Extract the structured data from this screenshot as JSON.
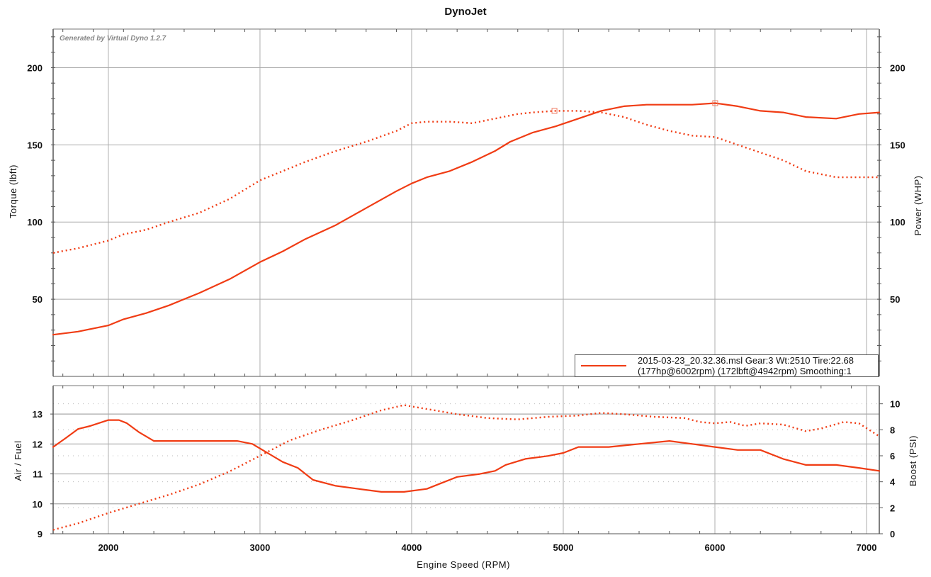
{
  "title": "DynoJet",
  "watermark": "Generated by Virtual Dyno 1.2.7",
  "legend": {
    "line1": "2015-03-23_20.32.36.msl Gear:3 Wt:2510 Tire:22.68",
    "line2": "(177hp@6002rpm) (172lbft@4942rpm) Smoothing:1",
    "color": "#f03c14"
  },
  "chart_data": [
    {
      "type": "line",
      "title": "DynoJet",
      "xlabel": "Engine Speed (RPM)",
      "ylabel": "Torque (lbft)",
      "ylabel_right": "Power (WHP)",
      "xlim": [
        1636,
        7084
      ],
      "ylim": [
        0,
        225
      ],
      "x_ticks": [
        2000,
        3000,
        4000,
        5000,
        6000,
        7000
      ],
      "y_ticks": [
        50,
        100,
        150,
        200
      ],
      "grid": true,
      "legend_position": "lower right",
      "series": [
        {
          "name": "Power (WHP)",
          "style": "solid",
          "color": "#f03c14",
          "x": [
            1636,
            1800,
            2000,
            2100,
            2250,
            2400,
            2600,
            2800,
            3000,
            3150,
            3300,
            3500,
            3700,
            3900,
            4000,
            4100,
            4250,
            4400,
            4550,
            4650,
            4800,
            4950,
            5100,
            5250,
            5400,
            5550,
            5700,
            5850,
            6002,
            6150,
            6300,
            6450,
            6600,
            6800,
            6950,
            7084
          ],
          "y": [
            27,
            29,
            33,
            37,
            41,
            46,
            54,
            63,
            74,
            81,
            89,
            98,
            109,
            120,
            125,
            129,
            133,
            139,
            146,
            152,
            158,
            162,
            167,
            172,
            175,
            176,
            176,
            176,
            177,
            175,
            172,
            171,
            168,
            167,
            170,
            171
          ]
        },
        {
          "name": "Torque (lbft)",
          "style": "dotted",
          "color": "#f03c14",
          "x": [
            1636,
            1800,
            2000,
            2100,
            2250,
            2400,
            2600,
            2800,
            3000,
            3150,
            3300,
            3500,
            3700,
            3900,
            4000,
            4100,
            4250,
            4400,
            4550,
            4700,
            4800,
            4942,
            5100,
            5250,
            5400,
            5550,
            5700,
            5850,
            6002,
            6150,
            6300,
            6450,
            6600,
            6800,
            6950,
            7084
          ],
          "y": [
            80,
            83,
            88,
            92,
            95,
            100,
            106,
            115,
            127,
            133,
            139,
            146,
            152,
            159,
            164,
            165,
            165,
            164,
            167,
            170,
            171,
            172,
            172,
            171,
            168,
            163,
            159,
            156,
            155,
            150,
            145,
            140,
            133,
            129,
            129,
            129
          ]
        }
      ],
      "markers": [
        {
          "series": "Torque (lbft)",
          "rpm": 4942,
          "value": 172,
          "shape": "square"
        },
        {
          "series": "Power (WHP)",
          "rpm": 6002,
          "value": 177,
          "shape": "square"
        }
      ]
    },
    {
      "type": "line",
      "xlabel": "Engine Speed (RPM)",
      "ylabel": "Air / Fuel",
      "ylabel_right": "Boost (PSI)",
      "xlim": [
        1636,
        7084
      ],
      "ylim": [
        9,
        13.95
      ],
      "ylim_right": [
        0,
        11.4
      ],
      "x_ticks": [
        2000,
        3000,
        4000,
        5000,
        6000,
        7000
      ],
      "y_ticks": [
        9,
        10,
        11,
        12,
        13
      ],
      "y_ticks_right": [
        0,
        2,
        4,
        6,
        8,
        10
      ],
      "grid": true,
      "series": [
        {
          "name": "Air / Fuel",
          "style": "solid",
          "color": "#f03c14",
          "axis": "left",
          "x": [
            1636,
            1720,
            1800,
            1880,
            2000,
            2070,
            2120,
            2200,
            2300,
            2400,
            2600,
            2850,
            2950,
            3050,
            3150,
            3250,
            3350,
            3500,
            3650,
            3800,
            3950,
            4100,
            4200,
            4300,
            4450,
            4550,
            4620,
            4750,
            4900,
            5000,
            5100,
            5300,
            5500,
            5700,
            5850,
            6000,
            6150,
            6300,
            6450,
            6600,
            6800,
            6950,
            7084
          ],
          "y": [
            11.9,
            12.2,
            12.5,
            12.6,
            12.8,
            12.8,
            12.7,
            12.4,
            12.1,
            12.1,
            12.1,
            12.1,
            12.0,
            11.7,
            11.4,
            11.2,
            10.8,
            10.6,
            10.5,
            10.4,
            10.4,
            10.5,
            10.7,
            10.9,
            11.0,
            11.1,
            11.3,
            11.5,
            11.6,
            11.7,
            11.9,
            11.9,
            12.0,
            12.1,
            12.0,
            11.9,
            11.8,
            11.8,
            11.5,
            11.3,
            11.3,
            11.2,
            11.1
          ]
        },
        {
          "name": "Boost (PSI)",
          "style": "dotted",
          "color": "#f03c14",
          "axis": "right",
          "x": [
            1636,
            1800,
            2000,
            2200,
            2400,
            2600,
            2800,
            3000,
            3200,
            3400,
            3600,
            3800,
            3950,
            4100,
            4300,
            4500,
            4700,
            4900,
            5100,
            5250,
            5400,
            5600,
            5800,
            5900,
            6000,
            6100,
            6200,
            6300,
            6450,
            6600,
            6700,
            6850,
            6950,
            7084
          ],
          "y": [
            0.3,
            0.8,
            1.6,
            2.3,
            3.0,
            3.8,
            4.8,
            6.0,
            7.2,
            8.0,
            8.7,
            9.5,
            9.9,
            9.6,
            9.2,
            8.9,
            8.8,
            9.0,
            9.1,
            9.3,
            9.2,
            9.0,
            8.9,
            8.6,
            8.5,
            8.6,
            8.3,
            8.5,
            8.4,
            7.9,
            8.1,
            8.6,
            8.5,
            7.5
          ]
        }
      ]
    }
  ]
}
